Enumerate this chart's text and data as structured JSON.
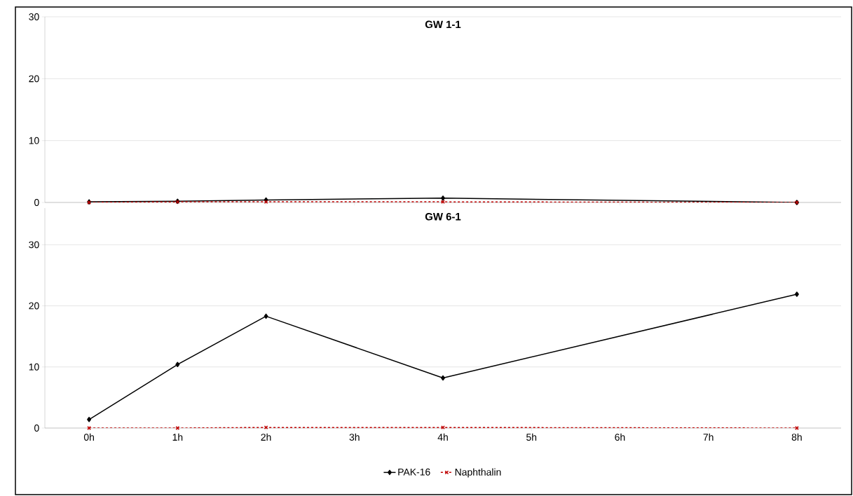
{
  "chart_data": [
    {
      "type": "line",
      "title": "GW 1-1",
      "x": [
        0,
        1,
        2,
        4,
        8
      ],
      "xlim": [
        -0.5,
        8.5
      ],
      "xticks": [
        {
          "value": 0,
          "label": null
        },
        {
          "value": 1,
          "label": null
        },
        {
          "value": 2,
          "label": null
        },
        {
          "value": 3,
          "label": null
        },
        {
          "value": 4,
          "label": null
        },
        {
          "value": 5,
          "label": null
        },
        {
          "value": 6,
          "label": null
        },
        {
          "value": 7,
          "label": null
        },
        {
          "value": 8,
          "label": null
        }
      ],
      "ylim": [
        0,
        30
      ],
      "yticks": [
        0,
        10,
        20,
        30
      ],
      "grid": "y",
      "legend": false,
      "tick_labels": "y",
      "series": [
        {
          "color": "#000000",
          "marker": "diamond",
          "line_style": "solid",
          "values": [
            0.1,
            0.2,
            0.4,
            0.7,
            0
          ]
        },
        {
          "color": "#c00000",
          "marker": "cross",
          "line_style": "dashed",
          "values": [
            0,
            0.1,
            0.1,
            0.1,
            0
          ]
        }
      ]
    },
    {
      "type": "line",
      "title": "GW 6-1",
      "x": [
        0,
        1,
        2,
        4,
        8
      ],
      "xlim": [
        -0.5,
        8.5
      ],
      "xticks": [
        {
          "value": 0,
          "label": "0h"
        },
        {
          "value": 1,
          "label": "1h"
        },
        {
          "value": 2,
          "label": "2h"
        },
        {
          "value": 3,
          "label": "3h"
        },
        {
          "value": 4,
          "label": "4h"
        },
        {
          "value": 5,
          "label": "5h"
        },
        {
          "value": 6,
          "label": "6h"
        },
        {
          "value": 7,
          "label": "7h"
        },
        {
          "value": 8,
          "label": "8h"
        }
      ],
      "ylim": [
        0,
        36
      ],
      "yticks": [
        0,
        10,
        20,
        30
      ],
      "grid": "y",
      "legend": "bottom",
      "series": [
        {
          "name": "PAK-16",
          "color": "#000000",
          "marker": "diamond",
          "line_style": "solid",
          "values": [
            1.4,
            10.4,
            18.3,
            8.2,
            21.9
          ]
        },
        {
          "name": "Naphthalin",
          "color": "#c00000",
          "marker": "cross",
          "line_style": "dashed",
          "values": [
            0,
            0,
            0.1,
            0.1,
            0
          ]
        }
      ]
    }
  ]
}
